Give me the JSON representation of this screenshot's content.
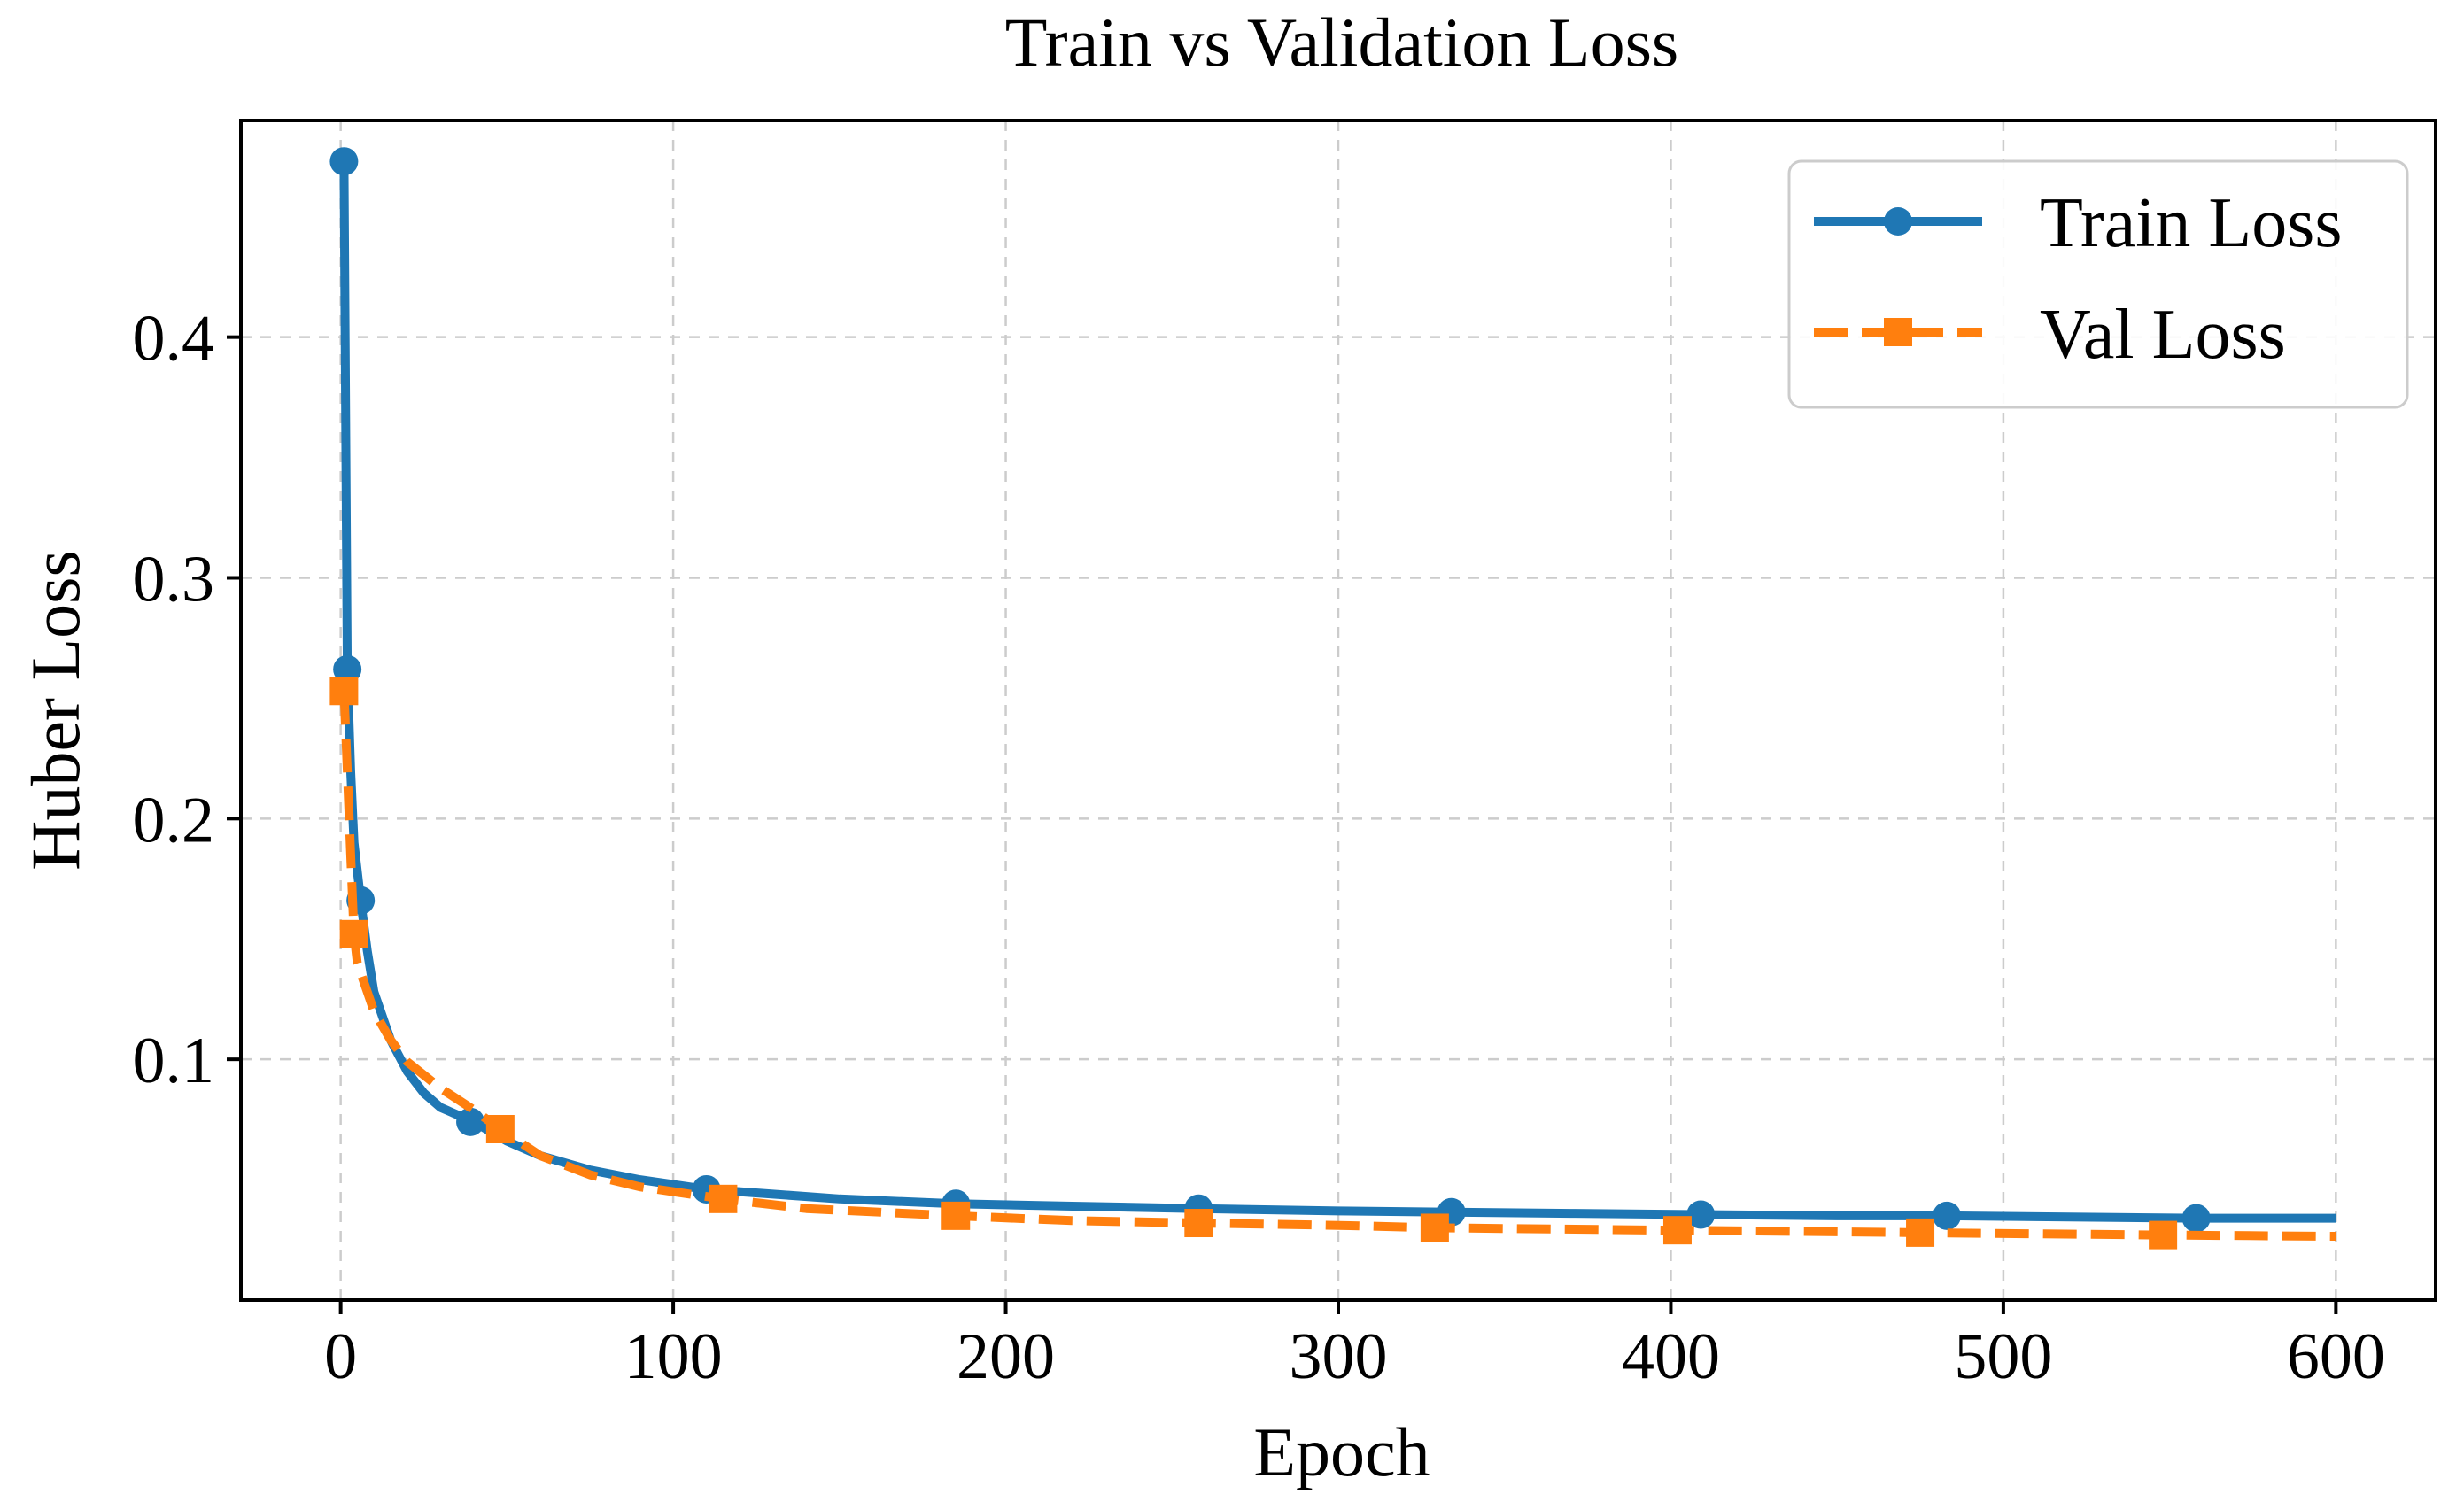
{
  "chart_data": {
    "type": "line",
    "title": "Train vs Validation Loss",
    "xlabel": "Epoch",
    "ylabel": "Huber Loss",
    "xlim": [
      -30,
      630
    ],
    "ylim": [
      0.0,
      0.49
    ],
    "x_ticks": [
      0,
      100,
      200,
      300,
      400,
      500,
      600
    ],
    "x_tick_labels": [
      "0",
      "100",
      "200",
      "300",
      "400",
      "500",
      "600"
    ],
    "y_ticks": [
      0.1,
      0.2,
      0.3,
      0.4
    ],
    "y_tick_labels": [
      "0.1",
      "0.2",
      "0.3",
      "0.4"
    ],
    "grid": true,
    "legend_position": "top-right",
    "series": [
      {
        "name": "Train Loss",
        "color": "#1f77b4",
        "line_style": "solid",
        "marker": "circle",
        "x": [
          1,
          2,
          3,
          4,
          6,
          8,
          10,
          15,
          20,
          25,
          30,
          40,
          50,
          60,
          75,
          90,
          110,
          130,
          150,
          185,
          220,
          258,
          300,
          334,
          370,
          409,
          450,
          483,
          520,
          558,
          600
        ],
        "y": [
          0.473,
          0.262,
          0.22,
          0.19,
          0.166,
          0.145,
          0.128,
          0.108,
          0.095,
          0.086,
          0.08,
          0.074,
          0.066,
          0.06,
          0.054,
          0.05,
          0.046,
          0.044,
          0.042,
          0.04,
          0.039,
          0.038,
          0.037,
          0.0365,
          0.036,
          0.0355,
          0.035,
          0.035,
          0.0345,
          0.034,
          0.034
        ],
        "marker_x": [
          1,
          2,
          6,
          39,
          110,
          185,
          258,
          334,
          409,
          483,
          558
        ],
        "marker_y": [
          0.473,
          0.262,
          0.166,
          0.074,
          0.046,
          0.04,
          0.038,
          0.0365,
          0.0355,
          0.035,
          0.034
        ]
      },
      {
        "name": "Val Loss",
        "color": "#ff7f0e",
        "line_style": "dashed",
        "marker": "square",
        "x": [
          1,
          2,
          3,
          4,
          5,
          8,
          10,
          15,
          20,
          30,
          40,
          48,
          60,
          75,
          90,
          115,
          140,
          185,
          220,
          258,
          300,
          329,
          365,
          402,
          440,
          475,
          510,
          548,
          600
        ],
        "y": [
          0.253,
          0.22,
          0.185,
          0.152,
          0.14,
          0.128,
          0.12,
          0.108,
          0.099,
          0.088,
          0.079,
          0.071,
          0.06,
          0.052,
          0.047,
          0.042,
          0.038,
          0.035,
          0.033,
          0.032,
          0.031,
          0.03,
          0.0295,
          0.029,
          0.0285,
          0.028,
          0.0275,
          0.027,
          0.0265
        ],
        "marker_x": [
          1,
          4,
          48,
          115,
          185,
          258,
          329,
          402,
          475,
          548
        ],
        "marker_y": [
          0.253,
          0.152,
          0.071,
          0.042,
          0.035,
          0.032,
          0.03,
          0.029,
          0.028,
          0.027
        ]
      }
    ]
  }
}
